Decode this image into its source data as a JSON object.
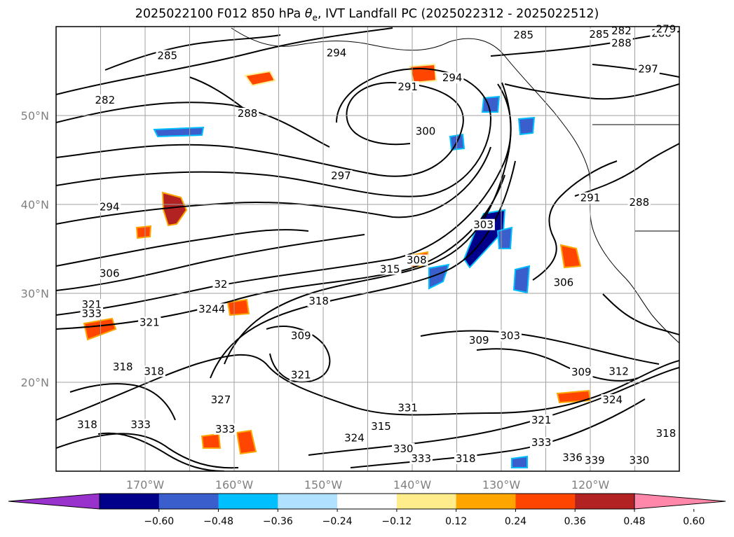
{
  "title": {
    "prefix": "2025022100 F012 850 hPa ",
    "symbol": "θ",
    "subscript": "e",
    "suffix": ", IVT Landfall PC (2025022312 - 2025022512)"
  },
  "map": {
    "extent": {
      "lon_min": -180,
      "lon_max": -110,
      "lat_min": 10,
      "lat_max": 60
    },
    "projection": "PlateCarree",
    "gridlines": true,
    "lat_ticks": [
      "20°N",
      "30°N",
      "40°N",
      "50°N"
    ],
    "lat_values": [
      20,
      30,
      40,
      50
    ],
    "lon_ticks": [
      "170°W",
      "160°W",
      "150°W",
      "140°W",
      "130°W",
      "120°W"
    ],
    "lon_values": [
      -170,
      -160,
      -150,
      -140,
      -130,
      -120
    ],
    "contour_labels": [
      {
        "text": "285",
        "lon": -167.5,
        "lat": 56.5
      },
      {
        "text": "282",
        "lon": -174.5,
        "lat": 51.5
      },
      {
        "text": "294",
        "lon": -148.5,
        "lat": 56.8
      },
      {
        "text": "288",
        "lon": -158.5,
        "lat": 50.0
      },
      {
        "text": "291",
        "lon": -140.5,
        "lat": 53.0
      },
      {
        "text": "294",
        "lon": -135.5,
        "lat": 54.0
      },
      {
        "text": "300",
        "lon": -138.5,
        "lat": 48.0
      },
      {
        "text": "297",
        "lon": -148.0,
        "lat": 43.0
      },
      {
        "text": "294",
        "lon": -174.0,
        "lat": 39.5
      },
      {
        "text": "306",
        "lon": -174.0,
        "lat": 32.0
      },
      {
        "text": "32",
        "lon": -161.5,
        "lat": 30.8
      },
      {
        "text": "3244",
        "lon": -162.5,
        "lat": 28.0
      },
      {
        "text": "321",
        "lon": -176.0,
        "lat": 28.5
      },
      {
        "text": "333",
        "lon": -176.0,
        "lat": 27.5
      },
      {
        "text": "321",
        "lon": -169.5,
        "lat": 26.5
      },
      {
        "text": "318",
        "lon": -150.5,
        "lat": 28.9
      },
      {
        "text": "315",
        "lon": -142.5,
        "lat": 32.5
      },
      {
        "text": "308",
        "lon": -139.5,
        "lat": 33.5
      },
      {
        "text": "303",
        "lon": -132.0,
        "lat": 37.5
      },
      {
        "text": "306",
        "lon": -123.0,
        "lat": 31.0
      },
      {
        "text": "309",
        "lon": -152.5,
        "lat": 25.0
      },
      {
        "text": "309",
        "lon": -132.5,
        "lat": 24.5
      },
      {
        "text": "303",
        "lon": -129.0,
        "lat": 25.0
      },
      {
        "text": "309",
        "lon": -121.0,
        "lat": 20.9
      },
      {
        "text": "312",
        "lon": -116.8,
        "lat": 21.0
      },
      {
        "text": "324",
        "lon": -117.5,
        "lat": 17.8
      },
      {
        "text": "321",
        "lon": -152.5,
        "lat": 20.6
      },
      {
        "text": "318",
        "lon": -172.5,
        "lat": 21.5
      },
      {
        "text": "318",
        "lon": -169.0,
        "lat": 21.0
      },
      {
        "text": "327",
        "lon": -161.5,
        "lat": 17.8
      },
      {
        "text": "331",
        "lon": -140.5,
        "lat": 16.9
      },
      {
        "text": "315",
        "lon": -143.5,
        "lat": 14.8
      },
      {
        "text": "321",
        "lon": -125.5,
        "lat": 15.5
      },
      {
        "text": "318",
        "lon": -176.5,
        "lat": 15.0
      },
      {
        "text": "333",
        "lon": -170.5,
        "lat": 15.0
      },
      {
        "text": "333",
        "lon": -161.0,
        "lat": 14.5
      },
      {
        "text": "324",
        "lon": -146.5,
        "lat": 13.5
      },
      {
        "text": "330",
        "lon": -141.0,
        "lat": 12.3
      },
      {
        "text": "333",
        "lon": -139.0,
        "lat": 11.2
      },
      {
        "text": "318",
        "lon": -134.0,
        "lat": 11.2
      },
      {
        "text": "333",
        "lon": -125.5,
        "lat": 13.0
      },
      {
        "text": "336",
        "lon": -122.0,
        "lat": 11.3
      },
      {
        "text": "339",
        "lon": -119.5,
        "lat": 11.0
      },
      {
        "text": "330",
        "lon": -114.5,
        "lat": 11.0
      },
      {
        "text": "288",
        "lon": -112.0,
        "lat": 59.0
      },
      {
        "text": "285",
        "lon": -127.5,
        "lat": 58.8
      },
      {
        "text": "285",
        "lon": -119.0,
        "lat": 58.9
      },
      {
        "text": "282",
        "lon": -116.5,
        "lat": 59.3
      },
      {
        "text": "279",
        "lon": -111.5,
        "lat": 59.5
      },
      {
        "text": "288",
        "lon": -116.5,
        "lat": 57.9
      },
      {
        "text": "297",
        "lon": -113.5,
        "lat": 55.0
      },
      {
        "text": "291",
        "lon": -120.0,
        "lat": 40.5
      },
      {
        "text": "288",
        "lon": -114.5,
        "lat": 40.0
      },
      {
        "text": "318",
        "lon": -111.5,
        "lat": 14.0
      }
    ]
  },
  "colorbar": {
    "tick_labels": [
      "−0.60",
      "−0.48",
      "−0.36",
      "−0.24",
      "−0.12",
      "0.12",
      "0.24",
      "0.36",
      "0.48",
      "0.60"
    ],
    "colors": [
      "#9932CC",
      "#00008B",
      "#3A5FCD",
      "#00BFFF",
      "#B0E2FF",
      "#FFFFFF",
      "#FFEC8B",
      "#FFA500",
      "#FF4500",
      "#B22222",
      "#FF88AA"
    ]
  }
}
